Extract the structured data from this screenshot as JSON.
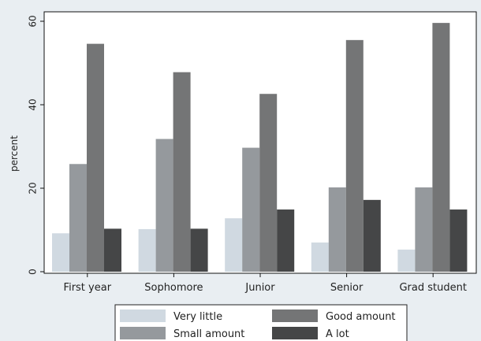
{
  "chart_data": {
    "type": "bar",
    "title": "",
    "xlabel": "",
    "ylabel": "percent",
    "ylim": [
      0,
      62
    ],
    "yticks": [
      0,
      20,
      40,
      60
    ],
    "categories": [
      "First year",
      "Sophomore",
      "Junior",
      "Senior",
      "Grad student"
    ],
    "series": [
      {
        "name": "Very little",
        "values": [
          9.2,
          10.2,
          12.8,
          7.0,
          5.3
        ]
      },
      {
        "name": "Small amount",
        "values": [
          25.8,
          31.8,
          29.7,
          20.2,
          20.2
        ]
      },
      {
        "name": "Good amount",
        "values": [
          54.6,
          47.8,
          42.6,
          55.5,
          59.6
        ]
      },
      {
        "name": "A lot",
        "values": [
          10.3,
          10.3,
          14.9,
          17.2,
          14.9
        ]
      }
    ],
    "colors": [
      "#d0d9e1",
      "#95999d",
      "#747576",
      "#454647"
    ],
    "grid": false,
    "legend_position": "bottom"
  }
}
